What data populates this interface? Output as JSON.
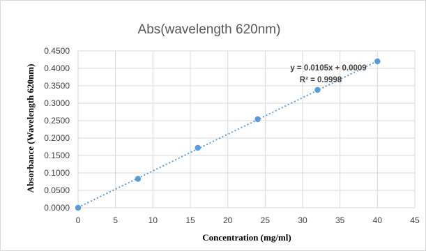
{
  "chart_data": {
    "type": "scatter",
    "title": "Abs(wavelength 620nm)",
    "xlabel": "Concentration (mg/ml)",
    "ylabel": "Absorbance (Wavelength 620nm)",
    "xlim": [
      0,
      45
    ],
    "ylim": [
      0,
      0.45
    ],
    "x_ticks": [
      "0",
      "5",
      "10",
      "15",
      "20",
      "25",
      "30",
      "35",
      "40",
      "45"
    ],
    "y_ticks": [
      "0.0000",
      "0.0500",
      "0.1000",
      "0.1500",
      "0.2000",
      "0.2500",
      "0.3000",
      "0.3500",
      "0.4000",
      "0.4500"
    ],
    "grid": true,
    "points": [
      {
        "x": 0,
        "y": 0.0
      },
      {
        "x": 8,
        "y": 0.083
      },
      {
        "x": 16,
        "y": 0.172
      },
      {
        "x": 24,
        "y": 0.254
      },
      {
        "x": 32,
        "y": 0.338
      },
      {
        "x": 40,
        "y": 0.42
      }
    ],
    "trendline": {
      "slope": 0.0105,
      "intercept": 0.0009,
      "x_start": 0,
      "x_end": 40
    },
    "equation": "y = 0.0105x + 0.0009",
    "r_squared": "R² = 0.9998",
    "colors": {
      "marker": "#5b9bd5",
      "trendline": "#5b9bd5",
      "grid": "#d9d9d9"
    }
  }
}
